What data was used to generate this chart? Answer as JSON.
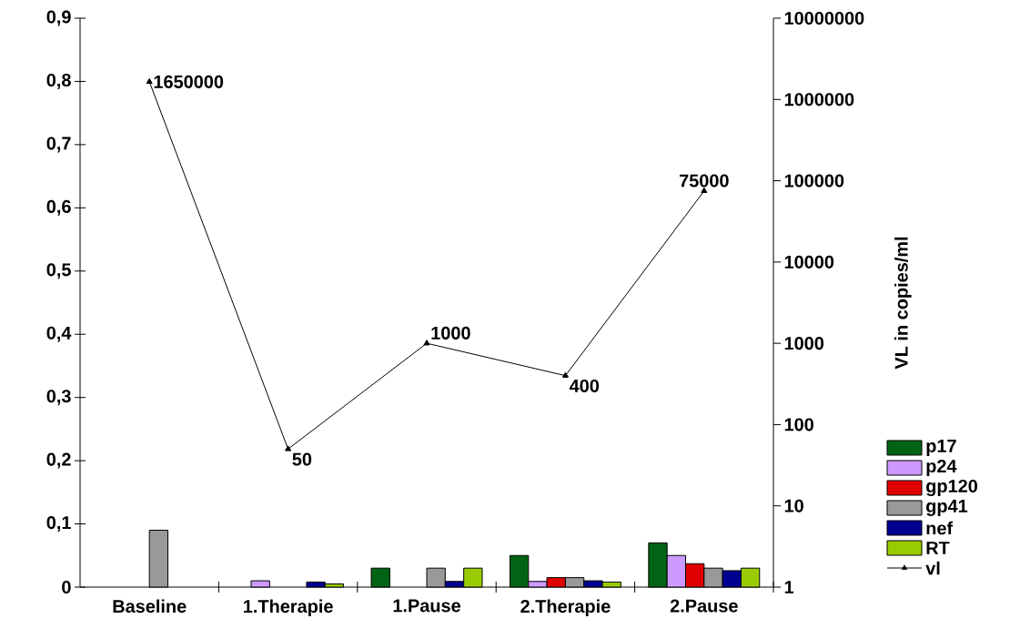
{
  "chart_data": {
    "type": "bar",
    "categories": [
      "Baseline",
      "1.Therapie",
      "1.Pause",
      "2.Therapie",
      "2.Pause"
    ],
    "y2label": "VL in copies/ml",
    "legend": "right",
    "log": "y2",
    "ylim": [
      0,
      0.9
    ],
    "yticks": [
      0,
      {
        "value": 0.1,
        "label": "0,1"
      },
      {
        "value": 0.2,
        "label": "0,2"
      },
      {
        "value": 0.3,
        "label": "0,3"
      },
      {
        "value": 0.4,
        "label": "0,4"
      },
      {
        "value": 0.5,
        "label": "0,5"
      },
      {
        "value": 0.6,
        "label": "0,6"
      },
      {
        "value": 0.7,
        "label": "0,7"
      },
      {
        "value": 0.8,
        "label": "0,8"
      },
      {
        "value": 0.9,
        "label": "0,9"
      }
    ],
    "y2lim": [
      1,
      10000000
    ],
    "y2ticks": [
      1,
      10,
      100,
      1000,
      10000,
      100000,
      1000000,
      10000000
    ],
    "series": [
      {
        "name": "p17",
        "color": "#006414",
        "values": [
          null,
          null,
          0.03,
          0.05,
          0.07
        ]
      },
      {
        "name": "p24",
        "color": "#cc99ff",
        "values": [
          null,
          0.01,
          null,
          0.009,
          0.05
        ]
      },
      {
        "name": "gp120",
        "color": "#e00000",
        "values": [
          null,
          null,
          null,
          0.015,
          0.037
        ]
      },
      {
        "name": "gp41",
        "color": "#999999",
        "values": [
          0.09,
          null,
          0.03,
          0.015,
          0.03
        ]
      },
      {
        "name": "nef",
        "color": "#000090",
        "values": [
          null,
          0.008,
          0.009,
          0.01,
          0.026
        ]
      },
      {
        "name": "RT",
        "color": "#99cc00",
        "values": [
          null,
          0.005,
          0.03,
          0.008,
          0.03
        ]
      },
      {
        "name": "vl",
        "type": "line",
        "axis": "y2",
        "marker": "triangle",
        "color": "#000000",
        "values": [
          1650000,
          50,
          1000,
          400,
          75000
        ],
        "value_labels": [
          "1650000",
          "50",
          "1000",
          "400",
          "75000"
        ]
      }
    ]
  }
}
